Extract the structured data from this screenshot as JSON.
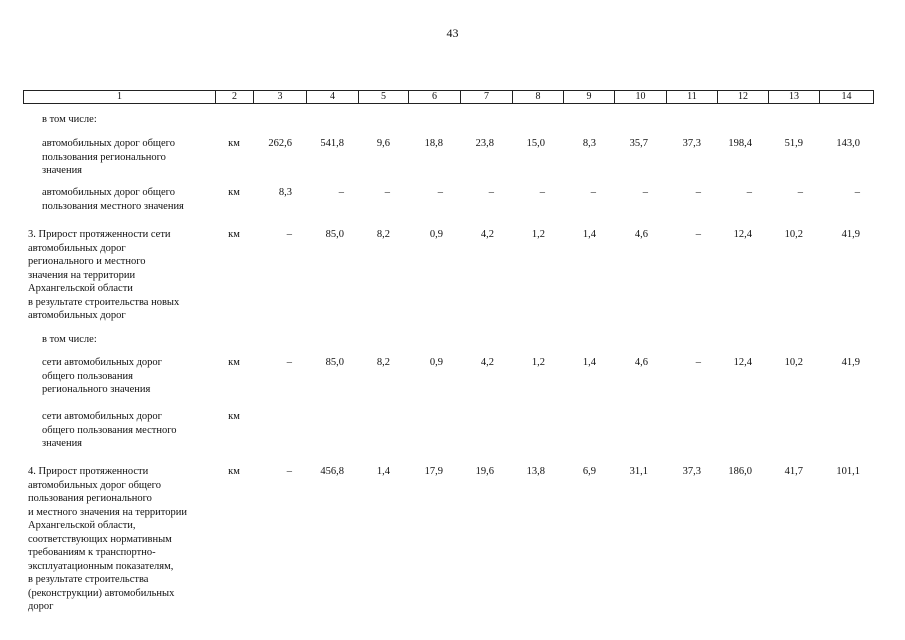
{
  "page_number": "43",
  "header": [
    "1",
    "2",
    "3",
    "4",
    "5",
    "6",
    "7",
    "8",
    "9",
    "10",
    "11",
    "12",
    "13",
    "14"
  ],
  "rows": [
    {
      "label": "в том числе:",
      "unit": "",
      "values": []
    },
    {
      "label": "автомобильных дорог общего\nпользования регионального\nзначения",
      "unit": "км",
      "values": [
        "262,6",
        "541,8",
        "9,6",
        "18,8",
        "23,8",
        "15,0",
        "8,3",
        "35,7",
        "37,3",
        "198,4",
        "51,9",
        "143,0"
      ]
    },
    {
      "label": "автомобильных дорог общего\nпользования местного значения",
      "unit": "км",
      "values": [
        "8,3",
        "–",
        "–",
        "–",
        "–",
        "–",
        "–",
        "–",
        "–",
        "–",
        "–",
        "–"
      ]
    },
    {
      "label": "3. Прирост протяженности сети\nавтомобильных дорог\nрегионального и местного\nзначения на территории\nАрхангельской области\nв результате строительства новых\nавтомобильных дорог",
      "unit": "км",
      "values": [
        "–",
        "85,0",
        "8,2",
        "0,9",
        "4,2",
        "1,2",
        "1,4",
        "4,6",
        "–",
        "12,4",
        "10,2",
        "41,9"
      ]
    },
    {
      "label": "в том числе:",
      "unit": "",
      "values": []
    },
    {
      "label": "сети автомобильных дорог\nобщего пользования\nрегионального значения",
      "unit": "км",
      "values": [
        "–",
        "85,0",
        "8,2",
        "0,9",
        "4,2",
        "1,2",
        "1,4",
        "4,6",
        "–",
        "12,4",
        "10,2",
        "41,9"
      ]
    },
    {
      "label": "сети автомобильных дорог\nобщего пользования местного\nзначения",
      "unit": "км",
      "values": []
    },
    {
      "label": "4. Прирост протяженности\nавтомобильных дорог общего\nпользования регионального\nи местного значения на территории\nАрхангельской области,\nсоответствующих нормативным\nтребованиям к транспортно-\nэксплуатационным показателям,\nв результате строительства\n(реконструкции) автомобильных\nдорог",
      "unit": "км",
      "values": [
        "–",
        "456,8",
        "1,4",
        "17,9",
        "19,6",
        "13,8",
        "6,9",
        "31,1",
        "37,3",
        "186,0",
        "41,7",
        "101,1"
      ]
    }
  ]
}
